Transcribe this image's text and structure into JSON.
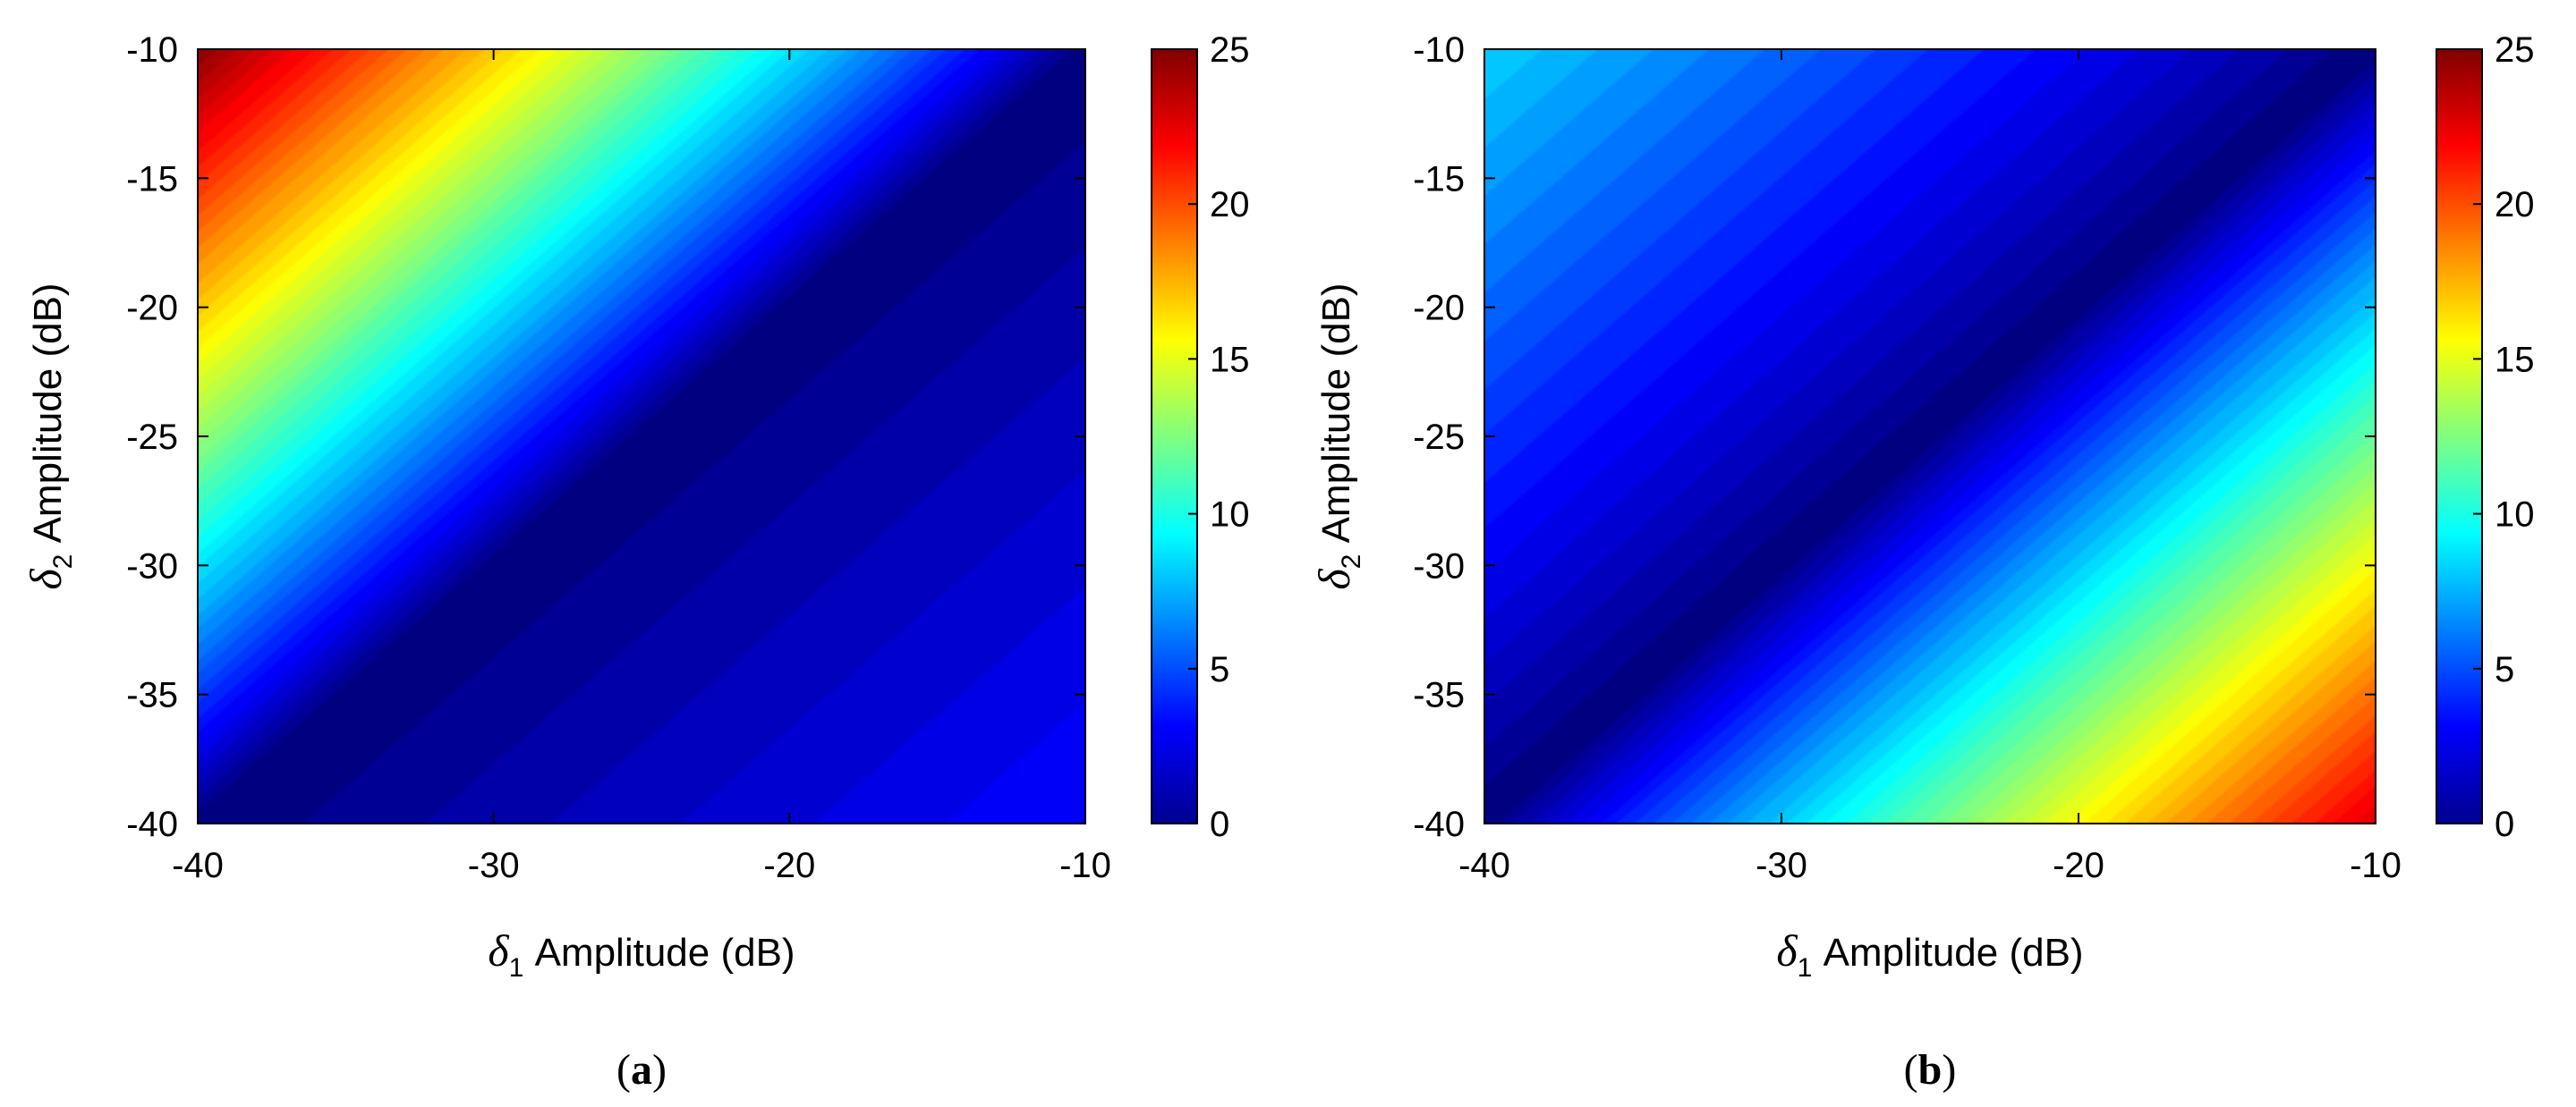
{
  "chart_data": [
    {
      "type": "heatmap",
      "panel_label": "a",
      "xlabel": {
        "symbol": "δ",
        "subscript": "1",
        "text": " Amplitude (dB)"
      },
      "ylabel": {
        "symbol": "δ",
        "subscript": "2",
        "text": " Amplitude (dB)"
      },
      "xlim": [
        -40,
        -10
      ],
      "ylim": [
        -40,
        -10
      ],
      "xticks": [
        "-40",
        "-30",
        "-20",
        "-10"
      ],
      "yticks": [
        "-10",
        "-15",
        "-20",
        "-25",
        "-30",
        "-35",
        "-40"
      ],
      "colorbar": {
        "clim": [
          0,
          25
        ],
        "ticks": [
          "25",
          "20",
          "15",
          "10",
          "5",
          "0"
        ],
        "colormap": "jet"
      },
      "surface": {
        "description": "zero along diagonal δ2 = δ1; rises steeply toward upper-left, mildly toward lower-right",
        "upper_left_value": 25,
        "lower_right_value": 3.5,
        "diagonal_value": 0
      },
      "grid": false
    },
    {
      "type": "heatmap",
      "panel_label": "b",
      "xlabel": {
        "symbol": "δ",
        "subscript": "1",
        "text": " Amplitude (dB)"
      },
      "ylabel": {
        "symbol": "δ",
        "subscript": "2",
        "text": " Amplitude (dB)"
      },
      "xlim": [
        -40,
        -10
      ],
      "ylim": [
        -40,
        -10
      ],
      "xticks": [
        "-40",
        "-30",
        "-20",
        "-10"
      ],
      "yticks": [
        "-10",
        "-15",
        "-20",
        "-25",
        "-30",
        "-35",
        "-40"
      ],
      "colorbar": {
        "clim": [
          0,
          25
        ],
        "ticks": [
          "25",
          "20",
          "15",
          "10",
          "5",
          "0"
        ],
        "colormap": "jet"
      },
      "surface": {
        "description": "zero along diagonal δ2 = δ1; rises steeply toward lower-right, mildly toward upper-left",
        "upper_left_value": 8.5,
        "lower_right_value": 23,
        "diagonal_value": 0
      },
      "grid": false
    }
  ]
}
